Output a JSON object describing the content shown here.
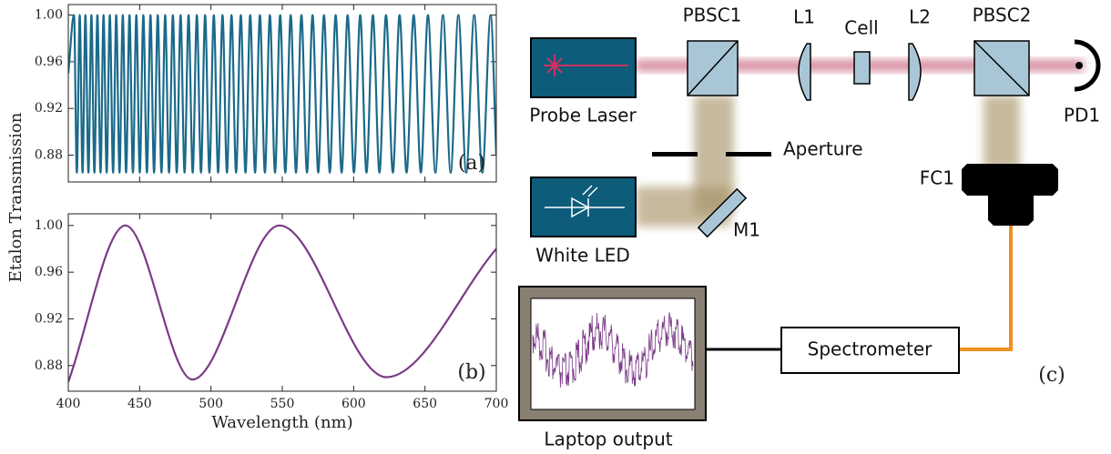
{
  "chart_data": [
    {
      "type": "line",
      "label": "(a)",
      "color": "#1b6a8a",
      "xlim": [
        400,
        700
      ],
      "ylim": [
        0.857,
        1.009
      ],
      "xticks": [
        400,
        450,
        500,
        550,
        600,
        650,
        700
      ],
      "yticks": [
        0.88,
        0.92,
        0.96,
        {
          "value": 1,
          "label": "1.00"
        }
      ],
      "x": [
        400,
        404.0,
        406.0,
        408.0,
        410.0,
        412.0,
        414.1,
        416.2,
        418.3,
        420.4,
        422.6,
        424.7,
        426.9,
        429.1,
        431.4,
        433.6,
        435.9,
        438.2,
        440.5,
        442.9,
        445.3,
        447.7,
        450.1,
        452.6,
        455.1,
        457.6,
        460.1,
        462.7,
        465.3,
        467.9,
        470.6,
        473.3,
        476.0,
        478.7,
        481.5,
        484.3,
        487.2,
        490.1,
        493.0,
        495.9,
        498.9,
        502.0,
        505.0,
        508.1,
        511.2,
        514.4,
        517.6,
        520.9,
        524.2,
        527.5,
        530.9,
        534.3,
        537.8,
        541.3,
        544.9,
        548.5,
        552.1,
        555.9,
        559.6,
        563.4,
        567.3,
        571.2,
        575.2,
        579.2,
        583.3,
        587.4,
        591.6,
        595.8,
        600.2,
        604.6,
        609.0,
        613.5,
        618.1,
        622.7,
        627.5,
        632.2,
        637.1,
        642.1,
        647.1,
        652.1,
        657.3,
        662.6,
        668.0,
        673.4,
        678.9,
        684.5,
        690.2,
        696.0,
        700
      ],
      "values": [
        0.95,
        1,
        0.865,
        1,
        0.865,
        1,
        0.865,
        1,
        0.865,
        1,
        0.865,
        1,
        0.865,
        1,
        0.865,
        1,
        0.865,
        1,
        0.865,
        1,
        0.865,
        1,
        0.865,
        1,
        0.865,
        1,
        0.865,
        1,
        0.865,
        1,
        0.865,
        1,
        0.865,
        1,
        0.865,
        1,
        0.865,
        1,
        0.865,
        1,
        0.865,
        1,
        0.865,
        1,
        0.865,
        1,
        0.865,
        1,
        0.865,
        1,
        0.865,
        1,
        0.865,
        1,
        0.865,
        1,
        0.865,
        1,
        0.865,
        1,
        0.865,
        1,
        0.865,
        1,
        0.865,
        1,
        0.865,
        1,
        0.865,
        1,
        0.865,
        1,
        0.865,
        1,
        0.865,
        1,
        0.865,
        1,
        0.865,
        1,
        0.865,
        1,
        0.865,
        1,
        0.865,
        1,
        0.865,
        1,
        0.88
      ]
    },
    {
      "type": "line",
      "label": "(b)",
      "color": "#7a3a86",
      "x_label": "Wavelength (nm)",
      "y_label": "Etalon Transmission",
      "xlim": [
        400,
        700
      ],
      "ylim": [
        0.858,
        1.01
      ],
      "xticks": [
        400,
        450,
        500,
        550,
        600,
        650,
        700
      ],
      "yticks": [
        0.88,
        0.92,
        0.96,
        {
          "value": 1,
          "label": "1.00"
        }
      ],
      "x": [
        400,
        440,
        487,
        548,
        623,
        700
      ],
      "values": [
        0.866,
        1,
        0.868,
        1,
        0.87,
        0.98
      ]
    }
  ],
  "diagram": {
    "labels": {
      "pbsc1": "PBSC1",
      "l1": "L1",
      "cell": "Cell",
      "l2": "L2",
      "pbsc2": "PBSC2",
      "probe_laser": "Probe Laser",
      "pd1": "PD1",
      "aperture": "Aperture",
      "fc1": "FC1",
      "white_led": "White LED",
      "m1": "M1",
      "spectrometer": "Spectrometer",
      "panel": "(c)",
      "laptop": "Laptop output"
    }
  }
}
